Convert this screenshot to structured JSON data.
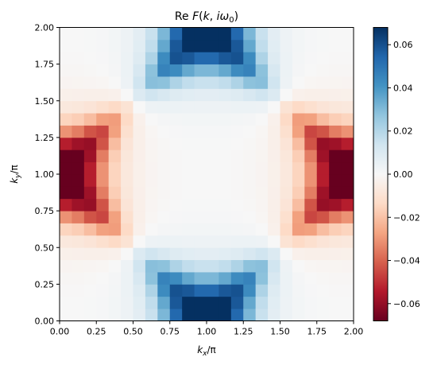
{
  "chart_data": {
    "type": "heatmap",
    "title": "Re F(k, iω₀)",
    "title_parts": {
      "prefix": "Re ",
      "func": "F",
      "open": "(",
      "k": "k",
      "sep": ", ",
      "i": "i",
      "omega": "ω",
      "sub": "0",
      "close": ")"
    },
    "xlabel_parts": {
      "main": "k",
      "sub": "x",
      "rest": "/π"
    },
    "ylabel_parts": {
      "main": "k",
      "sub": "y",
      "rest": "/π"
    },
    "xlim": [
      0,
      2
    ],
    "ylim": [
      0,
      2
    ],
    "x_ticks": [
      "0.00",
      "0.25",
      "0.50",
      "0.75",
      "1.00",
      "1.25",
      "1.50",
      "1.75",
      "2.00"
    ],
    "y_ticks": [
      "0.00",
      "0.25",
      "0.50",
      "0.75",
      "1.00",
      "1.25",
      "1.50",
      "1.75",
      "2.00"
    ],
    "colorbar_ticks": [
      "0.06",
      "0.04",
      "0.02",
      "0.00",
      "−0.02",
      "−0.04",
      "−0.06"
    ],
    "colorbar_tick_values": [
      0.06,
      0.04,
      0.02,
      0.0,
      -0.02,
      -0.04,
      -0.06
    ],
    "vmin": -0.068,
    "vmax": 0.068,
    "colormap": "RdBu",
    "grid_size": 24,
    "values_description": "d-wave-like pattern: positive (blue) peaks near (1,0) and (1,2); negative (red) peaks near (0,1) and (2,1)"
  }
}
